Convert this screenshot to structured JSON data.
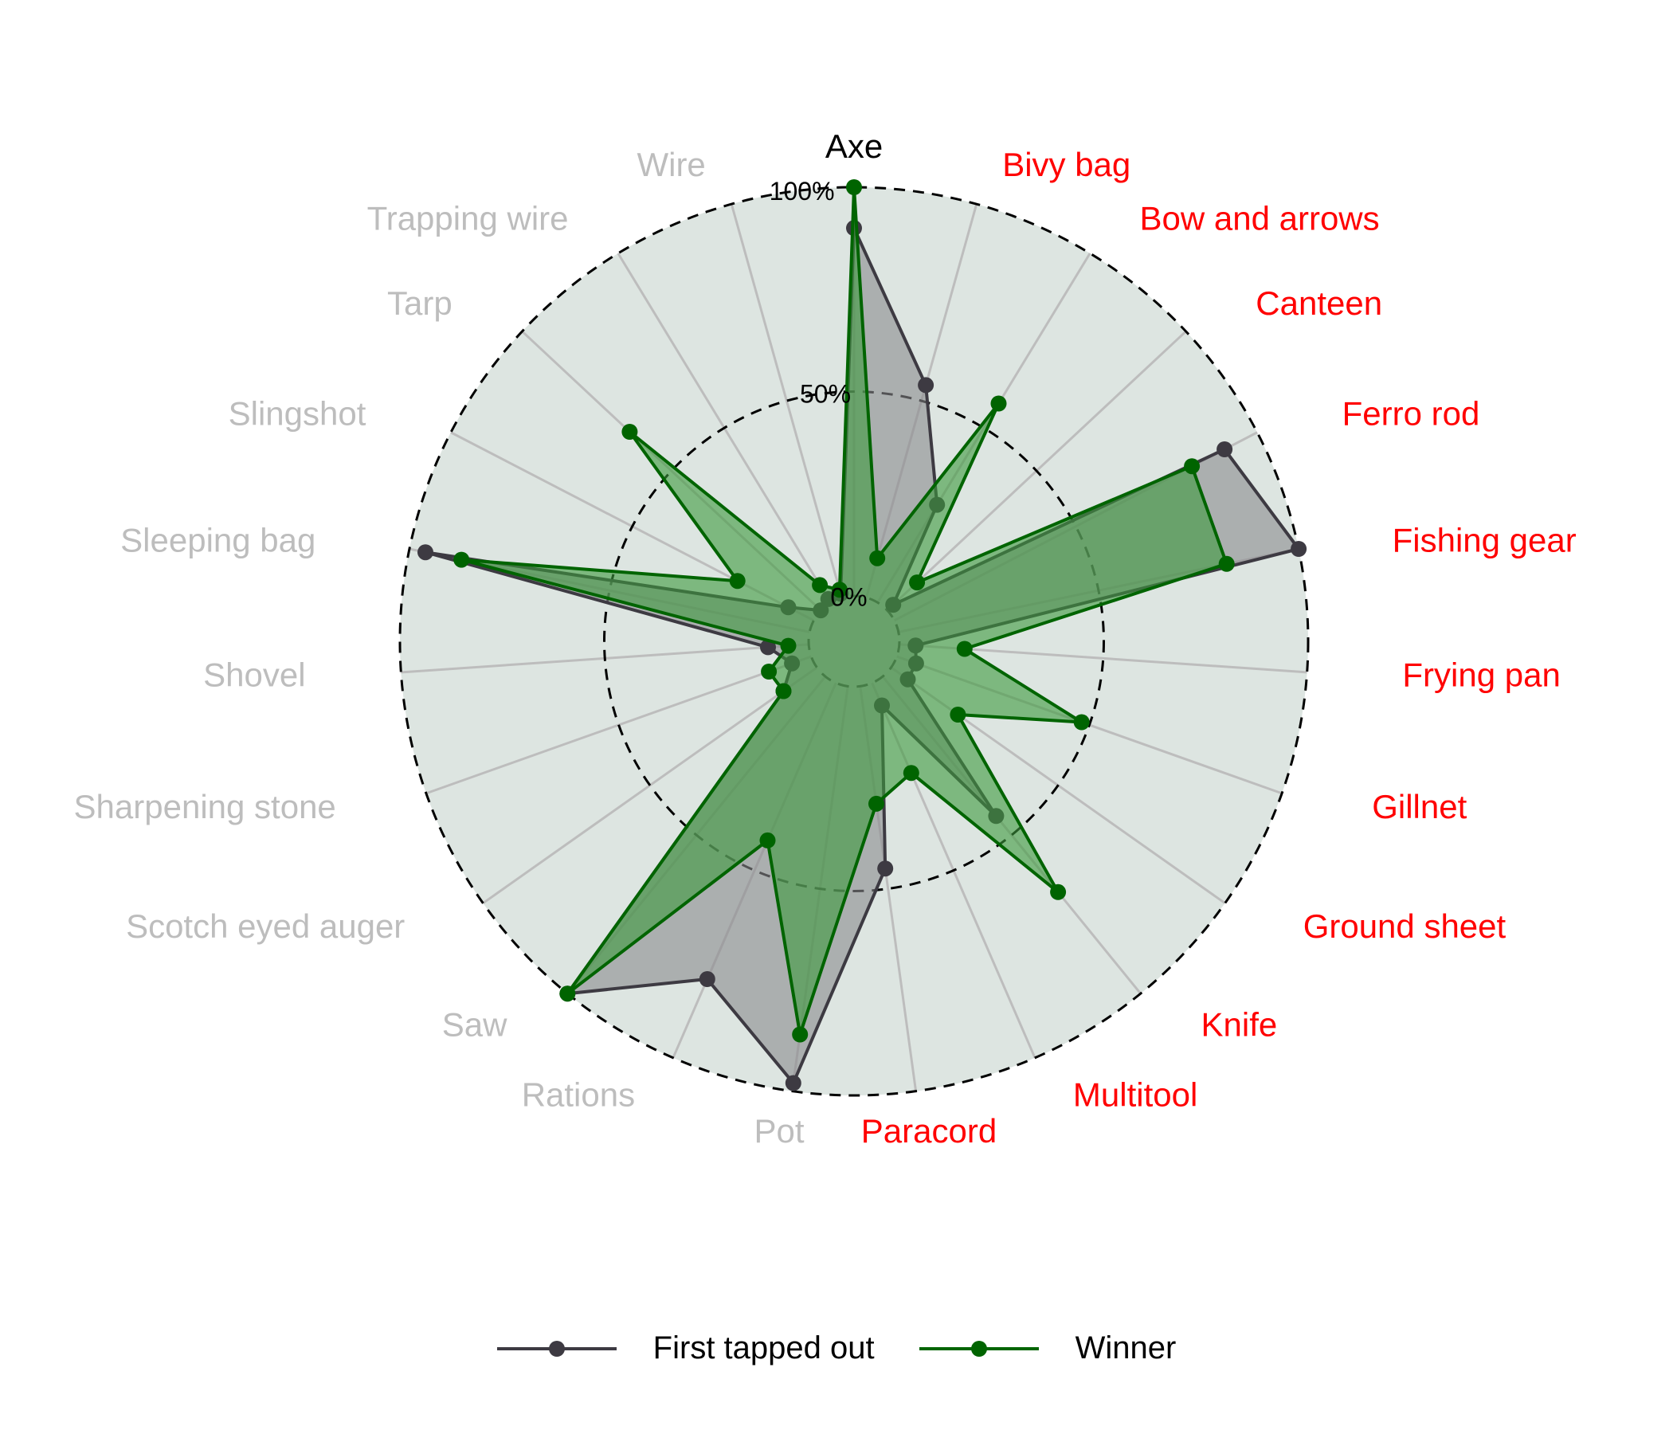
{
  "chart_data": {
    "type": "radar",
    "categories": [
      "Axe",
      "Bivy bag",
      "Bow and arrows",
      "Canteen",
      "Ferro rod",
      "Fishing gear",
      "Frying pan",
      "Gillnet",
      "Ground sheet",
      "Knife",
      "Multitool",
      "Paracord",
      "Pot",
      "Rations",
      "Saw",
      "Scotch eyed auger",
      "Sharpening stone",
      "Shovel",
      "Sleeping bag",
      "Slingshot",
      "Tarp",
      "Trapping wire",
      "Wire"
    ],
    "highlight_colors": [
      "#000000",
      "#ff0000",
      "#ff0000",
      "#ff0000",
      "#ff0000",
      "#ff0000",
      "#ff0000",
      "#ff0000",
      "#ff0000",
      "#ff0000",
      "#ff0000",
      "#ff0000",
      "#bdbdbd",
      "#bdbdbd",
      "#bdbdbd",
      "#bdbdbd",
      "#bdbdbd",
      "#bdbdbd",
      "#bdbdbd",
      "#bdbdbd",
      "#bdbdbd",
      "#bdbdbd",
      "#bdbdbd"
    ],
    "radial_ticks": [
      {
        "value": 0,
        "label": "0%"
      },
      {
        "value": 50,
        "label": "50%"
      },
      {
        "value": 100,
        "label": "100%"
      }
    ],
    "rlim": [
      -10,
      100
    ],
    "series": [
      {
        "name": "First tapped out",
        "color": "#3d3a42",
        "fill": "#8a8a8e",
        "values": [
          90,
          54,
          28,
          2,
          91,
          100,
          4,
          5,
          5,
          44,
          6,
          45,
          98,
          79,
          100,
          10,
          5,
          10,
          96,
          7,
          0,
          1,
          1
        ]
      },
      {
        "name": "Winner",
        "color": "#006400",
        "fill": "#3e9a3e",
        "values": [
          100,
          10,
          57,
          10,
          82,
          82,
          16,
          48,
          20,
          68,
          24,
          29,
          86,
          42,
          100,
          10,
          11,
          5,
          87,
          21,
          64,
          5,
          2
        ]
      }
    ],
    "legend_position": "bottom"
  }
}
